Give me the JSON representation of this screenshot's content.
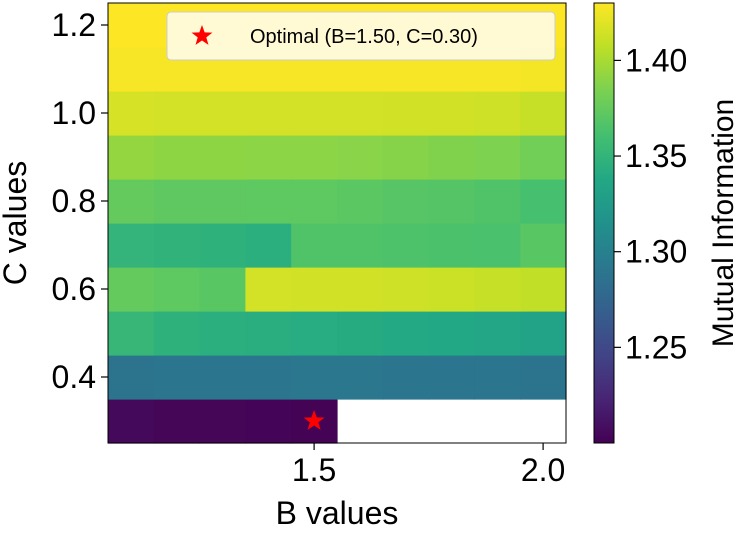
{
  "chart_data": {
    "type": "heatmap",
    "xlabel": "B values",
    "ylabel": "C values",
    "colorbar_label": "Mutual Information",
    "x_ticks": [
      {
        "value": 1.5,
        "label": "1.5"
      },
      {
        "value": 2.0,
        "label": "2.0"
      }
    ],
    "y_ticks": [
      {
        "value": 0.4,
        "label": "0.4"
      },
      {
        "value": 0.6,
        "label": "0.6"
      },
      {
        "value": 0.8,
        "label": "0.8"
      },
      {
        "value": 1.0,
        "label": "1.0"
      },
      {
        "value": 1.2,
        "label": "1.2"
      }
    ],
    "colorbar_ticks": [
      {
        "value": 1.25,
        "label": "1.25"
      },
      {
        "value": 1.3,
        "label": "1.30"
      },
      {
        "value": 1.35,
        "label": "1.35"
      },
      {
        "value": 1.4,
        "label": "1.40"
      }
    ],
    "xlim": [
      1.05,
      2.05
    ],
    "ylim": [
      0.25,
      1.25
    ],
    "color_range": [
      1.2,
      1.43
    ],
    "x": [
      1.1,
      1.2,
      1.3,
      1.4,
      1.5,
      1.6,
      1.7,
      1.8,
      1.9,
      2.0
    ],
    "y": [
      0.3,
      0.4,
      0.5,
      0.6,
      0.7,
      0.8,
      0.9,
      1.0,
      1.1,
      1.2
    ],
    "values": [
      [
        1.205,
        1.203,
        1.203,
        1.202,
        1.201,
        null,
        null,
        null,
        null,
        null
      ],
      [
        1.288,
        1.29,
        1.29,
        1.29,
        1.291,
        1.291,
        1.29,
        1.29,
        1.289,
        1.287
      ],
      [
        1.352,
        1.347,
        1.345,
        1.344,
        1.342,
        1.341,
        1.339,
        1.338,
        1.336,
        1.332
      ],
      [
        1.375,
        1.372,
        1.37,
        1.415,
        1.414,
        1.414,
        1.413,
        1.412,
        1.41,
        1.408
      ],
      [
        1.35,
        1.348,
        1.347,
        1.345,
        1.366,
        1.366,
        1.365,
        1.364,
        1.363,
        1.37
      ],
      [
        1.375,
        1.373,
        1.373,
        1.372,
        1.372,
        1.371,
        1.369,
        1.368,
        1.366,
        1.362
      ],
      [
        1.393,
        1.391,
        1.391,
        1.39,
        1.39,
        1.389,
        1.388,
        1.386,
        1.385,
        1.38
      ],
      [
        1.416,
        1.415,
        1.415,
        1.415,
        1.415,
        1.415,
        1.414,
        1.414,
        1.413,
        1.41
      ],
      [
        1.428,
        1.428,
        1.428,
        1.428,
        1.428,
        1.428,
        1.428,
        1.428,
        1.428,
        1.427
      ],
      [
        1.43,
        1.43,
        1.43,
        1.43,
        1.43,
        1.43,
        1.43,
        1.43,
        1.43,
        1.43
      ]
    ],
    "optimal": {
      "B": 1.5,
      "C": 0.3,
      "color": "#ff0000"
    },
    "legend": {
      "placement": "top-right",
      "entries": [
        {
          "label": "Optimal (B=1.50, C=0.30)",
          "marker": "star",
          "color": "#ff0000"
        }
      ]
    },
    "colormap": "viridis"
  }
}
